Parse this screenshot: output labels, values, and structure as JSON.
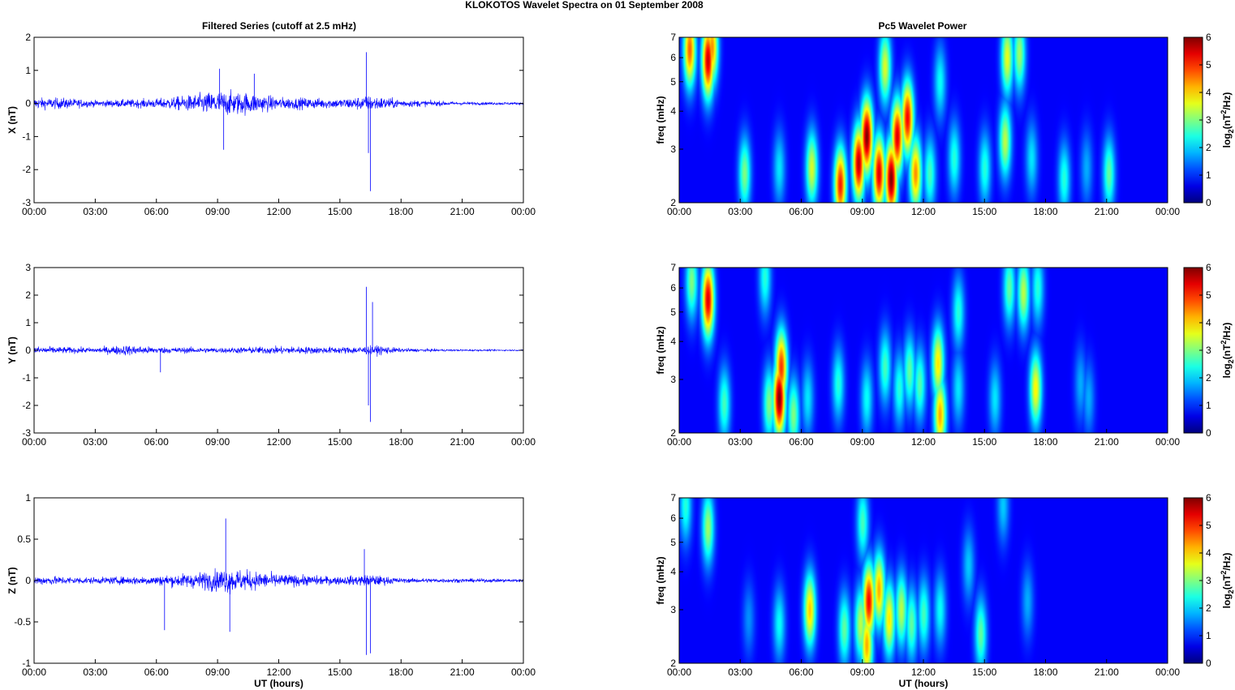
{
  "figure": {
    "title": "KLOKOTOS Wavelet Spectra on 01 September 2008",
    "left_title": "Filtered Series (cutoff at 2.5 mHz)",
    "right_title": "Pc5 Wavelet Power",
    "colors": {
      "trace": "#0000ff",
      "background": "#000080"
    }
  },
  "chart_data": [
    {
      "type": "line",
      "ylabel": "X (nT)",
      "xlabel": "",
      "x_ticks": [
        "00:00",
        "03:00",
        "06:00",
        "09:00",
        "12:00",
        "15:00",
        "18:00",
        "21:00",
        "00:00"
      ],
      "y_ticks": [
        "2",
        "1",
        "0",
        "-1",
        "-2",
        "-3"
      ],
      "ylim": [
        -3,
        2
      ],
      "baseline": 0,
      "activity": [
        [
          0,
          0.35
        ],
        [
          1.5,
          0.35
        ],
        [
          3,
          0.2
        ],
        [
          6,
          0.3
        ],
        [
          7.5,
          0.5
        ],
        [
          9,
          0.8
        ],
        [
          10.5,
          0.7
        ],
        [
          12,
          0.4
        ],
        [
          15,
          0.3
        ],
        [
          16.5,
          0.5
        ],
        [
          18,
          0.25
        ],
        [
          21,
          0.1
        ],
        [
          24,
          0.08
        ]
      ],
      "spikes": [
        [
          9.3,
          -1.4
        ],
        [
          9.1,
          1.05
        ],
        [
          16.3,
          1.55
        ],
        [
          16.5,
          -2.65
        ],
        [
          16.4,
          -1.5
        ],
        [
          10.8,
          0.9
        ]
      ]
    },
    {
      "type": "line",
      "ylabel": "Y (nT)",
      "xlabel": "",
      "x_ticks": [
        "00:00",
        "03:00",
        "06:00",
        "09:00",
        "12:00",
        "15:00",
        "18:00",
        "21:00",
        "00:00"
      ],
      "y_ticks": [
        "3",
        "2",
        "1",
        "0",
        "-1",
        "-2",
        "-3"
      ],
      "ylim": [
        -3,
        3
      ],
      "baseline": 0,
      "activity": [
        [
          0,
          0.3
        ],
        [
          3,
          0.2
        ],
        [
          4.5,
          0.4
        ],
        [
          6,
          0.25
        ],
        [
          9,
          0.2
        ],
        [
          12,
          0.3
        ],
        [
          15,
          0.25
        ],
        [
          17,
          0.35
        ],
        [
          18,
          0.15
        ],
        [
          21,
          0.06
        ],
        [
          24,
          0.05
        ]
      ],
      "spikes": [
        [
          16.3,
          2.3
        ],
        [
          16.5,
          -2.6
        ],
        [
          16.4,
          -2.0
        ],
        [
          16.6,
          1.75
        ],
        [
          6.2,
          -0.8
        ]
      ]
    },
    {
      "type": "line",
      "ylabel": "Z (nT)",
      "xlabel": "UT (hours)",
      "x_ticks": [
        "00:00",
        "03:00",
        "06:00",
        "09:00",
        "12:00",
        "15:00",
        "18:00",
        "21:00",
        "00:00"
      ],
      "y_ticks": [
        "1",
        "0.5",
        "0",
        "-0.5",
        "-1"
      ],
      "ylim": [
        -1,
        1
      ],
      "baseline": 0,
      "activity": [
        [
          0,
          0.12
        ],
        [
          3,
          0.08
        ],
        [
          6,
          0.12
        ],
        [
          8,
          0.2
        ],
        [
          9.5,
          0.32
        ],
        [
          11,
          0.22
        ],
        [
          12.5,
          0.15
        ],
        [
          15,
          0.1
        ],
        [
          16.5,
          0.15
        ],
        [
          18,
          0.06
        ],
        [
          21,
          0.05
        ],
        [
          24,
          0.04
        ]
      ],
      "spikes": [
        [
          9.4,
          0.75
        ],
        [
          16.3,
          -0.9
        ],
        [
          16.5,
          -0.88
        ],
        [
          16.2,
          0.38
        ],
        [
          9.6,
          -0.62
        ],
        [
          6.4,
          -0.6
        ]
      ]
    },
    {
      "type": "heatmap",
      "ylabel": "freq (mHz)",
      "xlabel": "",
      "colorbar_label": "log₂(nT²/Hz)",
      "colorbar_label_main": "log",
      "colorbar_label_sub": "2",
      "colorbar_label_mid": "(nT",
      "colorbar_label_sup": "2",
      "colorbar_label_end": "/Hz)",
      "x_ticks": [
        "00:00",
        "03:00",
        "06:00",
        "09:00",
        "12:00",
        "15:00",
        "18:00",
        "21:00",
        "00:00"
      ],
      "y_ticks": [
        "7",
        "6",
        "5",
        "4",
        "3",
        "2"
      ],
      "cbar_ticks": [
        "6",
        "5",
        "4",
        "3",
        "2",
        "1",
        "0"
      ],
      "ylim": [
        2,
        7
      ],
      "clim": [
        0,
        6
      ],
      "blobs": [
        [
          1.4,
          5.9,
          5.5
        ],
        [
          0.5,
          6.4,
          4.5
        ],
        [
          1.6,
          6.5,
          4.2
        ],
        [
          3.2,
          2.5,
          2.6
        ],
        [
          4.9,
          2.6,
          1.6
        ],
        [
          6.5,
          2.6,
          3.2
        ],
        [
          7.9,
          2.3,
          5.0
        ],
        [
          8.8,
          2.7,
          5.6
        ],
        [
          9.2,
          3.3,
          6.0
        ],
        [
          9.8,
          2.5,
          5.4
        ],
        [
          10.4,
          2.4,
          6.0
        ],
        [
          10.7,
          3.3,
          5.4
        ],
        [
          11.2,
          3.8,
          5.2
        ],
        [
          11.6,
          2.5,
          4.2
        ],
        [
          12.3,
          2.5,
          2.2
        ],
        [
          13.5,
          2.8,
          2.0
        ],
        [
          15.0,
          2.6,
          2.0
        ],
        [
          16.0,
          3.2,
          3.0
        ],
        [
          16.1,
          6.0,
          3.3
        ],
        [
          17.3,
          2.8,
          1.6
        ],
        [
          18.9,
          2.4,
          2.0
        ],
        [
          20.0,
          2.6,
          1.2
        ],
        [
          21.1,
          2.5,
          2.4
        ],
        [
          16.7,
          6.2,
          2.8
        ],
        [
          10.1,
          5.6,
          3.2
        ],
        [
          12.8,
          5.0,
          1.8
        ]
      ]
    },
    {
      "type": "heatmap",
      "ylabel": "freq (mHz)",
      "xlabel": "",
      "colorbar_label": "log₂(nT²/Hz)",
      "colorbar_label_main": "log",
      "colorbar_label_sub": "2",
      "colorbar_label_mid": "(nT",
      "colorbar_label_sup": "2",
      "colorbar_label_end": "/Hz)",
      "x_ticks": [
        "00:00",
        "03:00",
        "06:00",
        "09:00",
        "12:00",
        "15:00",
        "18:00",
        "21:00",
        "00:00"
      ],
      "y_ticks": [
        "7",
        "6",
        "5",
        "4",
        "3",
        "2"
      ],
      "cbar_ticks": [
        "6",
        "5",
        "4",
        "3",
        "2",
        "1",
        "0"
      ],
      "ylim": [
        2,
        7
      ],
      "clim": [
        0,
        6
      ],
      "blobs": [
        [
          1.4,
          5.5,
          5.4
        ],
        [
          0.6,
          6.3,
          2.6
        ],
        [
          2.2,
          2.5,
          2.2
        ],
        [
          4.4,
          2.5,
          2.6
        ],
        [
          4.9,
          2.6,
          6.0
        ],
        [
          5.0,
          3.3,
          4.8
        ],
        [
          5.6,
          2.3,
          2.6
        ],
        [
          6.3,
          2.6,
          1.6
        ],
        [
          7.8,
          2.9,
          2.0
        ],
        [
          9.2,
          2.6,
          1.8
        ],
        [
          10.1,
          3.3,
          2.2
        ],
        [
          10.8,
          2.8,
          2.0
        ],
        [
          11.3,
          3.2,
          2.4
        ],
        [
          11.8,
          2.9,
          2.3
        ],
        [
          12.7,
          3.4,
          3.6
        ],
        [
          12.8,
          2.3,
          4.0
        ],
        [
          13.7,
          2.8,
          1.6
        ],
        [
          15.5,
          2.6,
          1.6
        ],
        [
          16.2,
          6.0,
          2.4
        ],
        [
          16.9,
          5.8,
          3.0
        ],
        [
          17.5,
          2.8,
          3.5
        ],
        [
          17.6,
          6.0,
          2.0
        ],
        [
          19.7,
          2.9,
          1.2
        ],
        [
          20.1,
          2.6,
          1.2
        ],
        [
          4.2,
          6.5,
          2.0
        ],
        [
          13.7,
          5.0,
          2.0
        ]
      ]
    },
    {
      "type": "heatmap",
      "ylabel": "freq (mHz)",
      "xlabel": "UT (hours)",
      "colorbar_label": "log₂(nT²/Hz)",
      "colorbar_label_main": "log",
      "colorbar_label_sub": "2",
      "colorbar_label_mid": "(nT",
      "colorbar_label_sup": "2",
      "colorbar_label_end": "/Hz)",
      "x_ticks": [
        "00:00",
        "03:00",
        "06:00",
        "09:00",
        "12:00",
        "15:00",
        "18:00",
        "21:00",
        "00:00"
      ],
      "y_ticks": [
        "7",
        "6",
        "5",
        "4",
        "3",
        "2"
      ],
      "cbar_ticks": [
        "6",
        "5",
        "4",
        "3",
        "2",
        "1",
        "0"
      ],
      "ylim": [
        2,
        7
      ],
      "clim": [
        0,
        6
      ],
      "blobs": [
        [
          1.4,
          5.6,
          2.8
        ],
        [
          3.4,
          2.8,
          1.0
        ],
        [
          4.9,
          2.7,
          1.8
        ],
        [
          6.4,
          3.0,
          3.8
        ],
        [
          8.1,
          2.6,
          2.4
        ],
        [
          8.9,
          2.7,
          3.0
        ],
        [
          9.3,
          3.2,
          5.2
        ],
        [
          9.2,
          2.3,
          4.0
        ],
        [
          9.8,
          3.5,
          4.0
        ],
        [
          10.3,
          2.8,
          3.6
        ],
        [
          10.9,
          3.0,
          3.0
        ],
        [
          11.4,
          2.7,
          2.4
        ],
        [
          12.0,
          2.9,
          2.2
        ],
        [
          12.8,
          3.0,
          1.8
        ],
        [
          14.8,
          2.5,
          2.4
        ],
        [
          14.2,
          4.2,
          1.4
        ],
        [
          15.9,
          6.6,
          1.4
        ],
        [
          17.1,
          3.2,
          1.2
        ],
        [
          0.3,
          6.6,
          2.0
        ],
        [
          9.0,
          5.8,
          2.2
        ]
      ]
    }
  ]
}
